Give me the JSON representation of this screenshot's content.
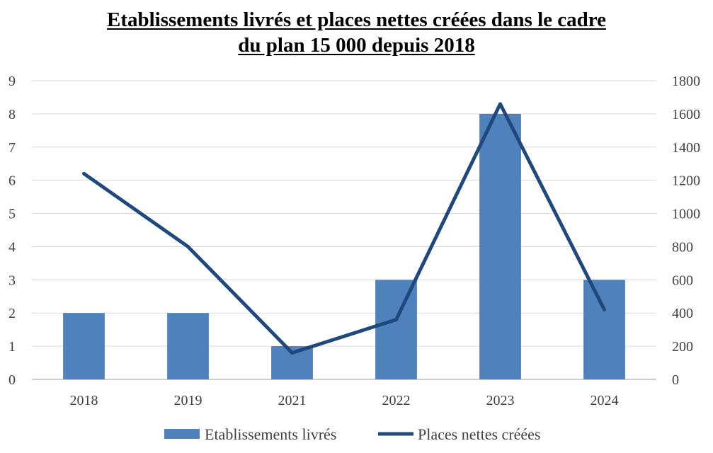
{
  "chart_data": {
    "type": "bar",
    "title_line1": "Etablissements livrés et places nettes créées dans le cadre",
    "title_line2": "du plan 15 000 depuis 2018",
    "categories": [
      "2018",
      "2019",
      "2021",
      "2022",
      "2023",
      "2024"
    ],
    "series": [
      {
        "name": "Etablissements livrés",
        "type": "bar",
        "axis": "left",
        "values": [
          2,
          2,
          1,
          3,
          8,
          3
        ],
        "color": "#4f81bd"
      },
      {
        "name": "Places nettes créées",
        "type": "line",
        "axis": "right",
        "values": [
          1240,
          800,
          160,
          360,
          1660,
          420
        ],
        "color": "#1f497d"
      }
    ],
    "y_left": {
      "min": 0,
      "max": 9,
      "ticks": [
        "0",
        "1",
        "2",
        "3",
        "4",
        "5",
        "6",
        "7",
        "8",
        "9"
      ]
    },
    "y_right": {
      "min": 0,
      "max": 1800,
      "ticks": [
        "0",
        "200",
        "400",
        "600",
        "800",
        "1000",
        "1200",
        "1400",
        "1600",
        "1800"
      ]
    },
    "grid": true,
    "legend_position": "bottom"
  }
}
